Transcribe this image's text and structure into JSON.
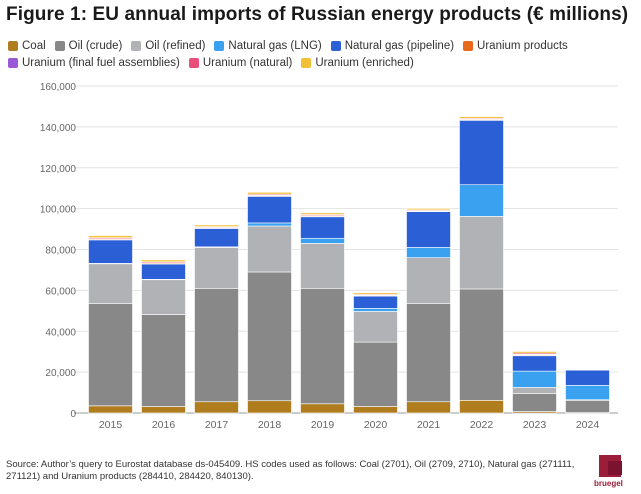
{
  "title": "Figure 1: EU annual imports of Russian energy products (€ millions)",
  "source": "Source: Author’s query to Eurostat database ds-045409. HS codes used as follows: Coal (2701), Oil (2709, 2710), Natural gas (271111, 271121) and Uranium products (284410, 284420, 840130).",
  "logo_text": "bruegel",
  "legend_rows": [
    [
      0,
      1,
      2,
      3,
      4,
      5
    ],
    [
      6,
      7,
      8
    ]
  ],
  "chart_data": {
    "type": "bar",
    "stacked": true,
    "title": "Figure 1: EU annual imports of Russian energy products (€ millions)",
    "xlabel": "",
    "ylabel": "",
    "ylim": [
      0,
      160000
    ],
    "yticks": [
      0,
      20000,
      40000,
      60000,
      80000,
      100000,
      120000,
      140000,
      160000
    ],
    "ytick_labels": [
      "0",
      "20,000",
      "40,000",
      "60,000",
      "80,000",
      "100,000",
      "120,000",
      "140,000",
      "160,000"
    ],
    "grid": true,
    "categories": [
      "2015",
      "2016",
      "2017",
      "2018",
      "2019",
      "2020",
      "2021",
      "2022",
      "2023",
      "2024"
    ],
    "series": [
      {
        "name": "Coal",
        "color": "#b07d1e",
        "values": [
          3500,
          3200,
          5500,
          6000,
          4500,
          3200,
          5500,
          6200,
          700,
          200
        ]
      },
      {
        "name": "Oil (crude)",
        "color": "#888888",
        "values": [
          50000,
          45000,
          55500,
          63000,
          56500,
          31500,
          48000,
          54500,
          8800,
          6000
        ]
      },
      {
        "name": "Oil (refined)",
        "color": "#b0b2b5",
        "values": [
          19500,
          17000,
          20000,
          22500,
          22000,
          15000,
          22500,
          35500,
          3000,
          300
        ]
      },
      {
        "name": "Natural gas (LNG)",
        "color": "#3aa0f0",
        "values": [
          200,
          200,
          300,
          1500,
          2500,
          1500,
          5000,
          15500,
          8000,
          7000
        ]
      },
      {
        "name": "Natural gas (pipeline)",
        "color": "#2a5fd6",
        "values": [
          11500,
          7500,
          9000,
          13000,
          10500,
          6000,
          17500,
          31500,
          7500,
          7500
        ]
      },
      {
        "name": "Uranium products",
        "color": "#e8691c",
        "values": [
          400,
          400,
          300,
          400,
          400,
          300,
          300,
          400,
          400,
          150
        ]
      },
      {
        "name": "Uranium (final fuel assemblies)",
        "color": "#9b59d6",
        "values": [
          200,
          200,
          200,
          200,
          200,
          200,
          200,
          200,
          300,
          50
        ]
      },
      {
        "name": "Uranium (natural)",
        "color": "#e8507a",
        "values": [
          500,
          500,
          400,
          500,
          500,
          400,
          400,
          400,
          600,
          100
        ]
      },
      {
        "name": "Uranium (enriched)",
        "color": "#f2c037",
        "values": [
          1000,
          900,
          800,
          900,
          800,
          700,
          700,
          800,
          800,
          200
        ]
      }
    ]
  }
}
